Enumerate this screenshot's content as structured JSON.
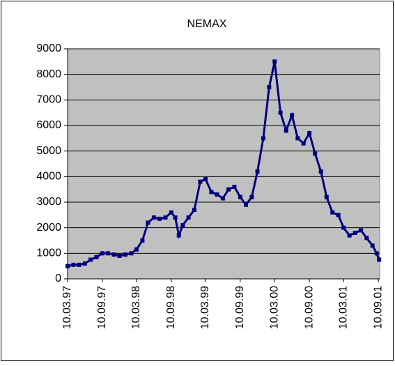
{
  "chart_data": {
    "type": "line",
    "title": "NEMAX",
    "x": [
      "1997-03-10",
      "1997-04-10",
      "1997-05-10",
      "1997-06-10",
      "1997-07-10",
      "1997-08-10",
      "1997-09-10",
      "1997-10-10",
      "1997-11-10",
      "1997-12-10",
      "1998-01-10",
      "1998-02-10",
      "1998-03-10",
      "1998-04-10",
      "1998-05-10",
      "1998-06-10",
      "1998-07-10",
      "1998-08-10",
      "1998-09-10",
      "1998-10-01",
      "1998-10-20",
      "1998-11-10",
      "1998-12-10",
      "1999-01-10",
      "1999-02-10",
      "1999-03-10",
      "1999-04-10",
      "1999-05-10",
      "1999-06-10",
      "1999-07-10",
      "1999-08-10",
      "1999-09-10",
      "1999-10-10",
      "1999-11-10",
      "1999-12-10",
      "2000-01-10",
      "2000-02-10",
      "2000-03-10",
      "2000-04-10",
      "2000-05-10",
      "2000-06-10",
      "2000-07-10",
      "2000-08-10",
      "2000-09-10",
      "2000-10-10",
      "2000-11-10",
      "2000-12-10",
      "2001-01-10",
      "2001-02-10",
      "2001-03-10",
      "2001-04-10",
      "2001-05-10",
      "2001-06-10",
      "2001-07-10",
      "2001-08-10",
      "2001-09-01",
      "2001-09-14"
    ],
    "series": [
      {
        "name": "NEMAX",
        "color": "#000080",
        "values": [
          500,
          550,
          550,
          600,
          750,
          850,
          1000,
          1000,
          950,
          900,
          950,
          1000,
          1150,
          1500,
          2200,
          2400,
          2350,
          2400,
          2600,
          2400,
          1700,
          2100,
          2400,
          2700,
          3800,
          3900,
          3400,
          3300,
          3150,
          3500,
          3600,
          3200,
          2900,
          3200,
          4200,
          5500,
          7500,
          8500,
          6500,
          5800,
          6400,
          5500,
          5300,
          5700,
          4900,
          4200,
          3200,
          2600,
          2500,
          2000,
          1700,
          1800,
          1900,
          1600,
          1300,
          1000,
          750
        ]
      }
    ],
    "xlim": [
      "1997-03-10",
      "2001-09-17"
    ],
    "xticks": [
      {
        "value": "1997-03-10",
        "label": "10.03.97"
      },
      {
        "value": "1997-09-10",
        "label": "10.09.97"
      },
      {
        "value": "1998-03-10",
        "label": "10.03.98"
      },
      {
        "value": "1998-09-10",
        "label": "10.09.98"
      },
      {
        "value": "1999-03-10",
        "label": "10.03.99"
      },
      {
        "value": "1999-09-10",
        "label": "10.09.99"
      },
      {
        "value": "2000-03-10",
        "label": "10.03.00"
      },
      {
        "value": "2000-09-10",
        "label": "10.09.00"
      },
      {
        "value": "2001-03-10",
        "label": "10.03.01"
      },
      {
        "value": "2001-09-10",
        "label": "10.09.01"
      }
    ],
    "ylim": [
      0,
      9000
    ],
    "yticks": [
      0,
      1000,
      2000,
      3000,
      4000,
      5000,
      6000,
      7000,
      8000,
      9000
    ],
    "grid": true
  }
}
